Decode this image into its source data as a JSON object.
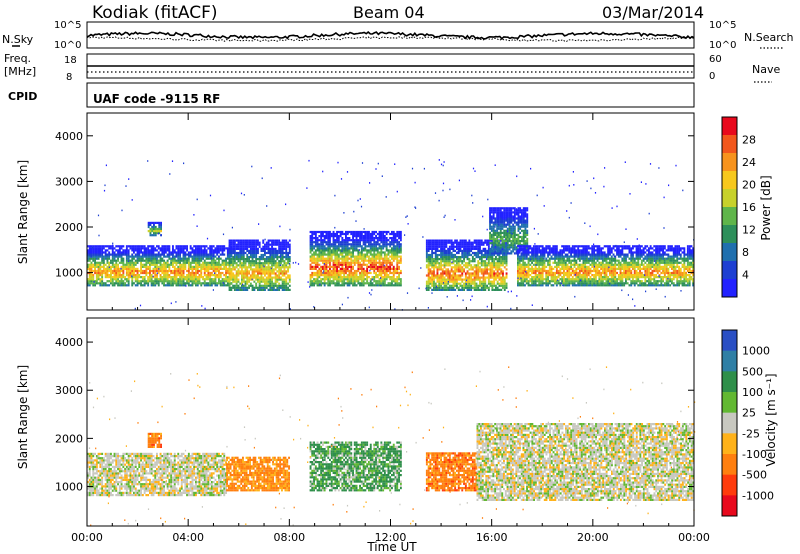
{
  "header": {
    "title": "Kodiak (fitACF)",
    "beam": "Beam 04",
    "date": "03/Mar/2014"
  },
  "top_panels": {
    "nsky_label": "N.Sky",
    "nsky_ticks": [
      "10^5",
      "10^0"
    ],
    "nsearch_label": "N.Search",
    "nsearch_ticks": [
      "10^5",
      "10^0"
    ],
    "freq_label_1": "Freq.",
    "freq_label_2": "[MHz]",
    "freq_ticks": [
      "18",
      "8"
    ],
    "nave_label": "Nave",
    "nave_ticks": [
      "60",
      "0"
    ],
    "cpid_label": "CPID",
    "cpid_text": "UAF code -9115 RF"
  },
  "power_colorbar": {
    "label": "Power [dB]",
    "ticks": [
      "28",
      "24",
      "20",
      "16",
      "12",
      "8",
      "4"
    ],
    "colors": [
      "#e8091d",
      "#f2571c",
      "#f7931d",
      "#f7c81d",
      "#c7d12b",
      "#5fb54a",
      "#2d8f5a",
      "#1f6fae",
      "#1d3fd2",
      "#2222ff"
    ]
  },
  "velocity_colorbar": {
    "label": "Velocity [m s⁻¹]",
    "ticks": [
      "1000",
      "500",
      "100",
      "25",
      "-25",
      "-100",
      "-500",
      "-1000"
    ],
    "colors": [
      "#2a4fc4",
      "#2f7fa5",
      "#2f8f4a",
      "#62b832",
      "#c8c8c0",
      "#ffb21a",
      "#ff7f0f",
      "#ff3b0c",
      "#e8091d"
    ]
  },
  "chart_data": [
    {
      "type": "heatmap",
      "title": "Power",
      "xlabel": "Time UT",
      "ylabel": "Slant Range [km]",
      "xlim": [
        "00:00",
        "24:00"
      ],
      "ylim": [
        180,
        4500
      ],
      "x_ticks": [
        "00:00",
        "04:00",
        "08:00",
        "12:00",
        "16:00",
        "20:00",
        "00:00"
      ],
      "y_ticks": [
        "1000",
        "2000",
        "3000",
        "4000"
      ],
      "colorbar": "Power [dB]",
      "regions": [
        {
          "t_start": 0.0,
          "t_end": 5.7,
          "range_low": 700,
          "range_high": 1600,
          "power_peak": 26
        },
        {
          "t_start": 2.4,
          "t_end": 2.9,
          "range_low": 1800,
          "range_high": 2100,
          "power_peak": 18
        },
        {
          "t_start": 5.6,
          "t_end": 8.0,
          "range_low": 600,
          "range_high": 1700,
          "power_peak": 24
        },
        {
          "t_start": 8.8,
          "t_end": 12.4,
          "range_low": 700,
          "range_high": 1900,
          "power_peak": 30
        },
        {
          "t_start": 13.4,
          "t_end": 16.6,
          "range_low": 600,
          "range_high": 1700,
          "power_peak": 28
        },
        {
          "t_start": 15.9,
          "t_end": 17.4,
          "range_low": 1400,
          "range_high": 2400,
          "power_peak": 14
        },
        {
          "t_start": 17.0,
          "t_end": 24.0,
          "range_low": 700,
          "range_high": 1600,
          "power_peak": 26
        }
      ]
    },
    {
      "type": "heatmap",
      "title": "Velocity",
      "xlabel": "Time UT",
      "ylabel": "Slant Range [km]",
      "xlim": [
        "00:00",
        "24:00"
      ],
      "ylim": [
        180,
        4500
      ],
      "x_ticks": [
        "00:00",
        "04:00",
        "08:00",
        "12:00",
        "16:00",
        "20:00",
        "00:00"
      ],
      "y_ticks": [
        "1000",
        "2000",
        "3000",
        "4000"
      ],
      "colorbar": "Velocity [m s-1]",
      "regions": [
        {
          "t_start": 0.0,
          "t_end": 5.5,
          "range_low": 800,
          "range_high": 1700,
          "velocity": 0
        },
        {
          "t_start": 2.4,
          "t_end": 2.9,
          "range_low": 1800,
          "range_high": 2100,
          "velocity": -200
        },
        {
          "t_start": 5.5,
          "t_end": 8.0,
          "range_low": 900,
          "range_high": 1600,
          "velocity": -150
        },
        {
          "t_start": 8.8,
          "t_end": 12.4,
          "range_low": 900,
          "range_high": 1900,
          "velocity": 80
        },
        {
          "t_start": 13.4,
          "t_end": 15.4,
          "range_low": 900,
          "range_high": 1700,
          "velocity": -200
        },
        {
          "t_start": 15.4,
          "t_end": 24.0,
          "range_low": 700,
          "range_high": 2300,
          "velocity": 0
        }
      ]
    }
  ]
}
